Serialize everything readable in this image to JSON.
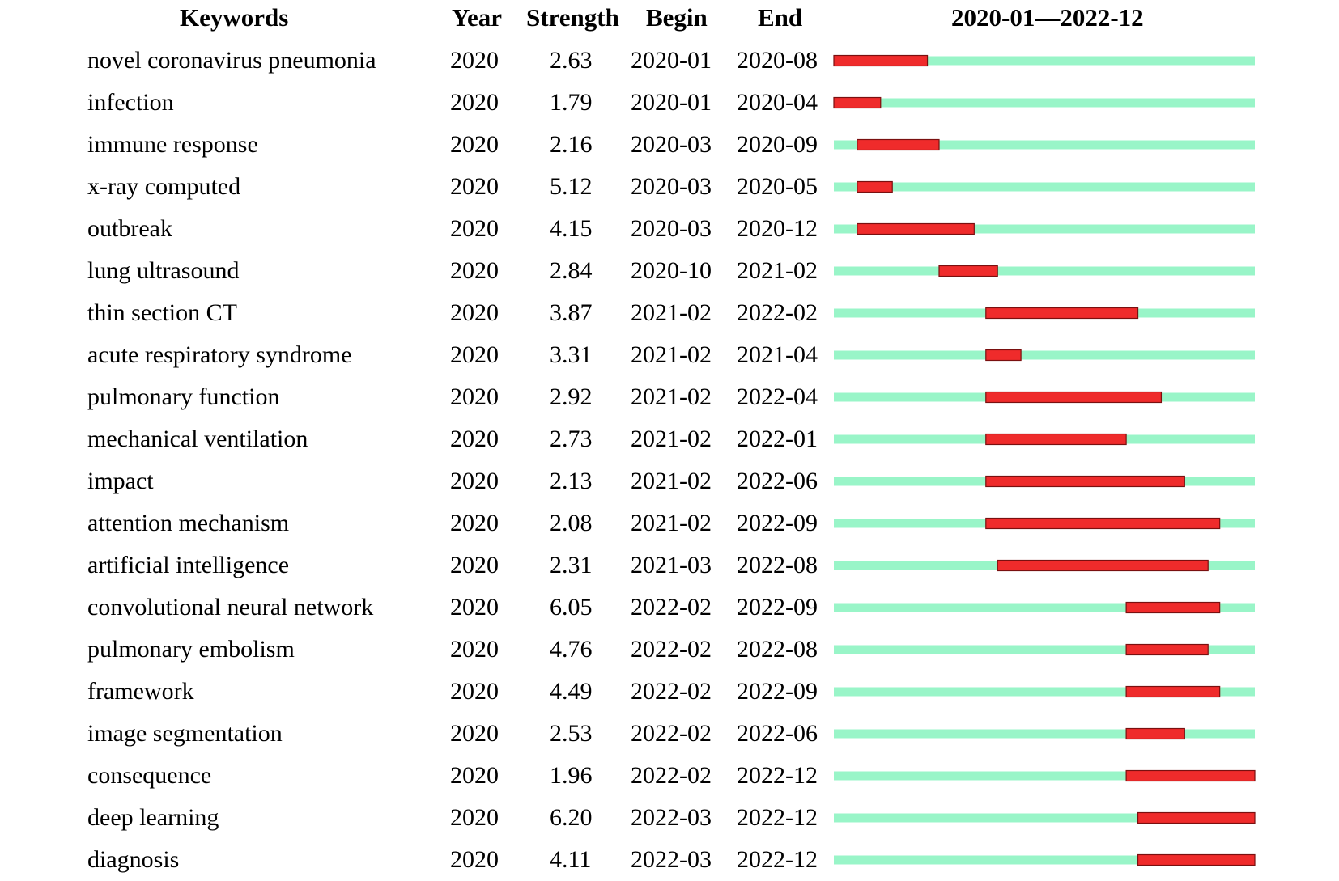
{
  "header": {
    "keywords": "Keywords",
    "year": "Year",
    "strength": "Strength",
    "begin": "Begin",
    "end": "End",
    "range": "2020-01—2022-12"
  },
  "colors": {
    "baseline": "#99f5c8",
    "burst": "#ef2b2b",
    "burst_border": "#7a1010"
  },
  "chart_data": {
    "type": "table",
    "title": "",
    "time_range": [
      "2020-01",
      "2022-12"
    ],
    "columns": [
      "Keywords",
      "Year",
      "Strength",
      "Begin",
      "End"
    ],
    "rows": [
      {
        "keyword": "novel coronavirus pneumonia",
        "year": "2020",
        "strength": "2.63",
        "begin": "2020-01",
        "end": "2020-08"
      },
      {
        "keyword": "infection",
        "year": "2020",
        "strength": "1.79",
        "begin": "2020-01",
        "end": "2020-04"
      },
      {
        "keyword": "immune response",
        "year": "2020",
        "strength": "2.16",
        "begin": "2020-03",
        "end": "2020-09"
      },
      {
        "keyword": "x-ray computed",
        "year": "2020",
        "strength": "5.12",
        "begin": "2020-03",
        "end": "2020-05"
      },
      {
        "keyword": "outbreak",
        "year": "2020",
        "strength": "4.15",
        "begin": "2020-03",
        "end": "2020-12"
      },
      {
        "keyword": "lung ultrasound",
        "year": "2020",
        "strength": "2.84",
        "begin": "2020-10",
        "end": "2021-02"
      },
      {
        "keyword": "thin section CT",
        "year": "2020",
        "strength": "3.87",
        "begin": "2021-02",
        "end": "2022-02"
      },
      {
        "keyword": "acute respiratory syndrome",
        "year": "2020",
        "strength": "3.31",
        "begin": "2021-02",
        "end": "2021-04"
      },
      {
        "keyword": "pulmonary function",
        "year": "2020",
        "strength": "2.92",
        "begin": "2021-02",
        "end": "2022-04"
      },
      {
        "keyword": "mechanical ventilation",
        "year": "2020",
        "strength": "2.73",
        "begin": "2021-02",
        "end": "2022-01"
      },
      {
        "keyword": "impact",
        "year": "2020",
        "strength": "2.13",
        "begin": "2021-02",
        "end": "2022-06"
      },
      {
        "keyword": "attention mechanism",
        "year": "2020",
        "strength": "2.08",
        "begin": "2021-02",
        "end": "2022-09"
      },
      {
        "keyword": "artificial intelligence",
        "year": "2020",
        "strength": "2.31",
        "begin": "2021-03",
        "end": "2022-08"
      },
      {
        "keyword": "convolutional neural network",
        "year": "2020",
        "strength": "6.05",
        "begin": "2022-02",
        "end": "2022-09"
      },
      {
        "keyword": "pulmonary embolism",
        "year": "2020",
        "strength": "4.76",
        "begin": "2022-02",
        "end": "2022-08"
      },
      {
        "keyword": "framework",
        "year": "2020",
        "strength": "4.49",
        "begin": "2022-02",
        "end": "2022-09"
      },
      {
        "keyword": "image segmentation",
        "year": "2020",
        "strength": "2.53",
        "begin": "2022-02",
        "end": "2022-06"
      },
      {
        "keyword": "consequence",
        "year": "2020",
        "strength": "1.96",
        "begin": "2022-02",
        "end": "2022-12"
      },
      {
        "keyword": "deep learning",
        "year": "2020",
        "strength": "6.20",
        "begin": "2022-03",
        "end": "2022-12"
      },
      {
        "keyword": "diagnosis",
        "year": "2020",
        "strength": "4.11",
        "begin": "2022-03",
        "end": "2022-12"
      }
    ]
  }
}
